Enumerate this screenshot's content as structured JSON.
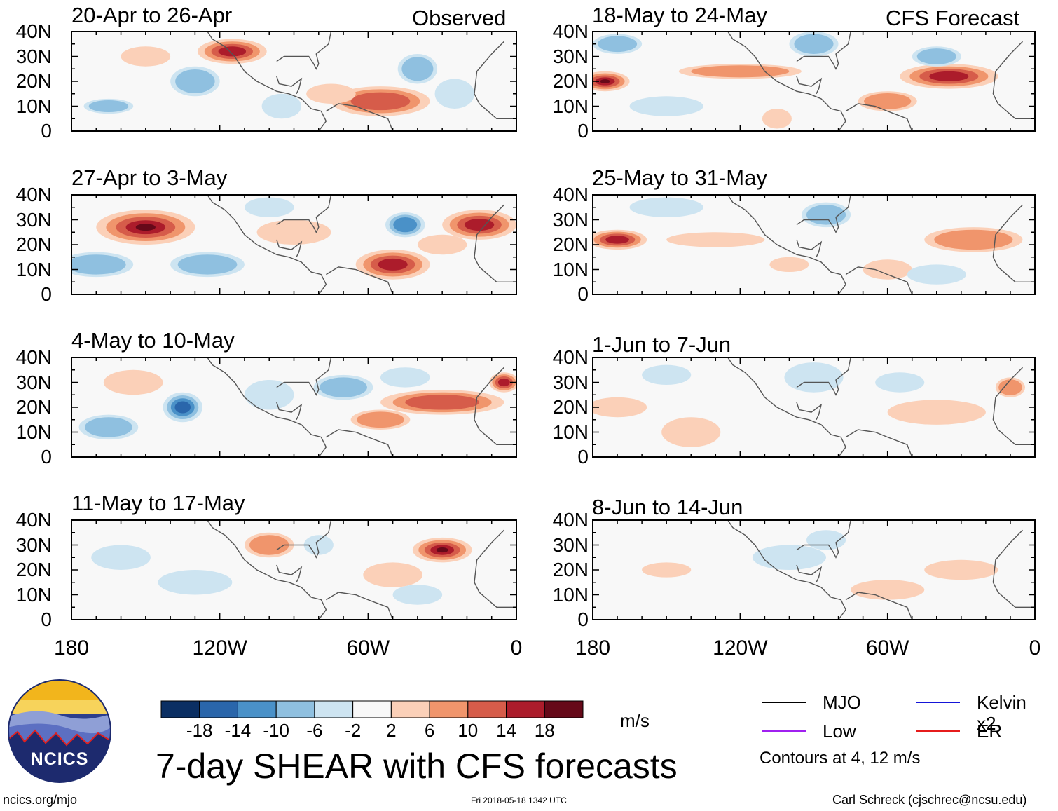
{
  "chart_data": {
    "type": "heatmap",
    "title": "7-day SHEAR with CFS forecasts",
    "units": "m/s",
    "x_ticks": [
      "180",
      "120W",
      "60W",
      "0"
    ],
    "x_range": [
      -180,
      0
    ],
    "y_ticks": [
      "40N",
      "30N",
      "20N",
      "10N",
      "0"
    ],
    "y_range": [
      0,
      40
    ],
    "column_labels": [
      "Observed",
      "CFS Forecast"
    ],
    "panels": [
      {
        "period": "20-Apr to 26-Apr",
        "source": "Observed",
        "anomalies": [
          {
            "lon": -115,
            "lat": 32,
            "v": 16,
            "rx": 14,
            "ry": 5
          },
          {
            "lon": -130,
            "lat": 20,
            "v": -8,
            "rx": 10,
            "ry": 6
          },
          {
            "lon": -165,
            "lat": 10,
            "v": -8,
            "rx": 10,
            "ry": 3
          },
          {
            "lon": -55,
            "lat": 12,
            "v": 12,
            "rx": 20,
            "ry": 6
          },
          {
            "lon": -40,
            "lat": 25,
            "v": -8,
            "rx": 8,
            "ry": 6
          },
          {
            "lon": -75,
            "lat": 15,
            "v": 6,
            "rx": 10,
            "ry": 4
          },
          {
            "lon": -150,
            "lat": 30,
            "v": 4,
            "rx": 10,
            "ry": 4
          },
          {
            "lon": -25,
            "lat": 15,
            "v": -6,
            "rx": 8,
            "ry": 6
          },
          {
            "lon": -95,
            "lat": 10,
            "v": -6,
            "rx": 8,
            "ry": 5
          }
        ]
      },
      {
        "period": "27-Apr to 3-May",
        "source": "Observed",
        "anomalies": [
          {
            "lon": -150,
            "lat": 27,
            "v": 20,
            "rx": 20,
            "ry": 7
          },
          {
            "lon": -170,
            "lat": 12,
            "v": -10,
            "rx": 15,
            "ry": 5
          },
          {
            "lon": -125,
            "lat": 12,
            "v": -8,
            "rx": 15,
            "ry": 5
          },
          {
            "lon": -50,
            "lat": 12,
            "v": 18,
            "rx": 15,
            "ry": 6
          },
          {
            "lon": -15,
            "lat": 28,
            "v": 18,
            "rx": 15,
            "ry": 6
          },
          {
            "lon": -45,
            "lat": 28,
            "v": -14,
            "rx": 8,
            "ry": 5
          },
          {
            "lon": -90,
            "lat": 25,
            "v": 6,
            "rx": 15,
            "ry": 5
          },
          {
            "lon": -100,
            "lat": 35,
            "v": -6,
            "rx": 10,
            "ry": 4
          },
          {
            "lon": -30,
            "lat": 20,
            "v": 6,
            "rx": 10,
            "ry": 4
          }
        ]
      },
      {
        "period": "4-May to 10-May",
        "source": "Observed",
        "anomalies": [
          {
            "lon": -135,
            "lat": 20,
            "v": -16,
            "rx": 8,
            "ry": 6
          },
          {
            "lon": -165,
            "lat": 12,
            "v": -10,
            "rx": 12,
            "ry": 5
          },
          {
            "lon": -155,
            "lat": 30,
            "v": 6,
            "rx": 12,
            "ry": 5
          },
          {
            "lon": -30,
            "lat": 22,
            "v": 14,
            "rx": 25,
            "ry": 5
          },
          {
            "lon": -55,
            "lat": 15,
            "v": 10,
            "rx": 12,
            "ry": 4
          },
          {
            "lon": -70,
            "lat": 28,
            "v": -10,
            "rx": 12,
            "ry": 5
          },
          {
            "lon": -5,
            "lat": 30,
            "v": 16,
            "rx": 6,
            "ry": 4
          },
          {
            "lon": -100,
            "lat": 25,
            "v": -6,
            "rx": 10,
            "ry": 6
          },
          {
            "lon": -45,
            "lat": 32,
            "v": -6,
            "rx": 10,
            "ry": 4
          }
        ]
      },
      {
        "period": "11-May to 17-May",
        "source": "Observed",
        "anomalies": [
          {
            "lon": -30,
            "lat": 28,
            "v": 20,
            "rx": 12,
            "ry": 5
          },
          {
            "lon": -50,
            "lat": 18,
            "v": 6,
            "rx": 12,
            "ry": 5
          },
          {
            "lon": -100,
            "lat": 30,
            "v": 8,
            "rx": 10,
            "ry": 5
          },
          {
            "lon": -160,
            "lat": 25,
            "v": -6,
            "rx": 12,
            "ry": 5
          },
          {
            "lon": -130,
            "lat": 15,
            "v": -6,
            "rx": 15,
            "ry": 5
          },
          {
            "lon": -80,
            "lat": 30,
            "v": -6,
            "rx": 6,
            "ry": 4
          },
          {
            "lon": -40,
            "lat": 10,
            "v": -6,
            "rx": 10,
            "ry": 4
          }
        ]
      },
      {
        "period": "18-May to 24-May",
        "source": "CFS Forecast",
        "anomalies": [
          {
            "lon": -175,
            "lat": 20,
            "v": 20,
            "rx": 10,
            "ry": 4
          },
          {
            "lon": -35,
            "lat": 22,
            "v": 16,
            "rx": 20,
            "ry": 5
          },
          {
            "lon": -60,
            "lat": 12,
            "v": 10,
            "rx": 12,
            "ry": 4
          },
          {
            "lon": -120,
            "lat": 24,
            "v": 8,
            "rx": 25,
            "ry": 3
          },
          {
            "lon": -170,
            "lat": 35,
            "v": -10,
            "rx": 10,
            "ry": 4
          },
          {
            "lon": -40,
            "lat": 30,
            "v": -10,
            "rx": 10,
            "ry": 4
          },
          {
            "lon": -150,
            "lat": 10,
            "v": -6,
            "rx": 15,
            "ry": 4
          },
          {
            "lon": -90,
            "lat": 35,
            "v": -8,
            "rx": 10,
            "ry": 5
          },
          {
            "lon": -105,
            "lat": 5,
            "v": 6,
            "rx": 6,
            "ry": 4
          }
        ]
      },
      {
        "period": "25-May to 31-May",
        "source": "CFS Forecast",
        "anomalies": [
          {
            "lon": -170,
            "lat": 22,
            "v": 16,
            "rx": 12,
            "ry": 4
          },
          {
            "lon": -130,
            "lat": 22,
            "v": 6,
            "rx": 20,
            "ry": 3
          },
          {
            "lon": -25,
            "lat": 22,
            "v": 10,
            "rx": 20,
            "ry": 5
          },
          {
            "lon": -85,
            "lat": 32,
            "v": -10,
            "rx": 10,
            "ry": 5
          },
          {
            "lon": -60,
            "lat": 10,
            "v": 6,
            "rx": 10,
            "ry": 4
          },
          {
            "lon": -150,
            "lat": 35,
            "v": -6,
            "rx": 15,
            "ry": 4
          },
          {
            "lon": -40,
            "lat": 8,
            "v": -4,
            "rx": 12,
            "ry": 4
          },
          {
            "lon": -100,
            "lat": 12,
            "v": 4,
            "rx": 8,
            "ry": 3
          }
        ]
      },
      {
        "period": "1-Jun to 7-Jun",
        "source": "CFS Forecast",
        "anomalies": [
          {
            "lon": -170,
            "lat": 20,
            "v": 6,
            "rx": 12,
            "ry": 4
          },
          {
            "lon": -140,
            "lat": 10,
            "v": 6,
            "rx": 12,
            "ry": 6
          },
          {
            "lon": -40,
            "lat": 18,
            "v": 6,
            "rx": 20,
            "ry": 5
          },
          {
            "lon": -90,
            "lat": 32,
            "v": -6,
            "rx": 12,
            "ry": 6
          },
          {
            "lon": -10,
            "lat": 28,
            "v": 8,
            "rx": 6,
            "ry": 4
          },
          {
            "lon": -55,
            "lat": 30,
            "v": -4,
            "rx": 10,
            "ry": 4
          },
          {
            "lon": -150,
            "lat": 33,
            "v": -4,
            "rx": 10,
            "ry": 4
          }
        ]
      },
      {
        "period": "8-Jun to 14-Jun",
        "source": "CFS Forecast",
        "anomalies": [
          {
            "lon": -60,
            "lat": 12,
            "v": 6,
            "rx": 15,
            "ry": 4
          },
          {
            "lon": -30,
            "lat": 20,
            "v": 4,
            "rx": 15,
            "ry": 4
          },
          {
            "lon": -100,
            "lat": 25,
            "v": -4,
            "rx": 15,
            "ry": 5
          },
          {
            "lon": -150,
            "lat": 20,
            "v": 4,
            "rx": 10,
            "ry": 3
          },
          {
            "lon": -85,
            "lat": 32,
            "v": -4,
            "rx": 8,
            "ry": 4
          }
        ]
      }
    ],
    "colorbar": {
      "ticks": [
        "-18",
        "-14",
        "-10",
        "-6",
        "-2",
        "2",
        "6",
        "10",
        "14",
        "18"
      ],
      "colors": [
        "#0b2f63",
        "#2a66ab",
        "#4a91c8",
        "#8fc0e0",
        "#cde4f1",
        "#f8f8f8",
        "#fbd0b8",
        "#f0956c",
        "#d65c4a",
        "#ac1c2b",
        "#660919"
      ]
    },
    "legend": [
      {
        "name": "MJO",
        "color": "#000000"
      },
      {
        "name": "Kelvin x2",
        "color": "#1515d8"
      },
      {
        "name": "Low",
        "color": "#a020f0"
      },
      {
        "name": "ER",
        "color": "#e61c1c"
      }
    ],
    "contour_note": "Contours at 4, 12 m/s"
  },
  "footer": {
    "left": "ncics.org/mjo",
    "center": "Fri 2018-05-18 1342 UTC",
    "right": "Carl Schreck (cjschrec@ncsu.edu)"
  },
  "logo": {
    "text": "NCICS"
  }
}
